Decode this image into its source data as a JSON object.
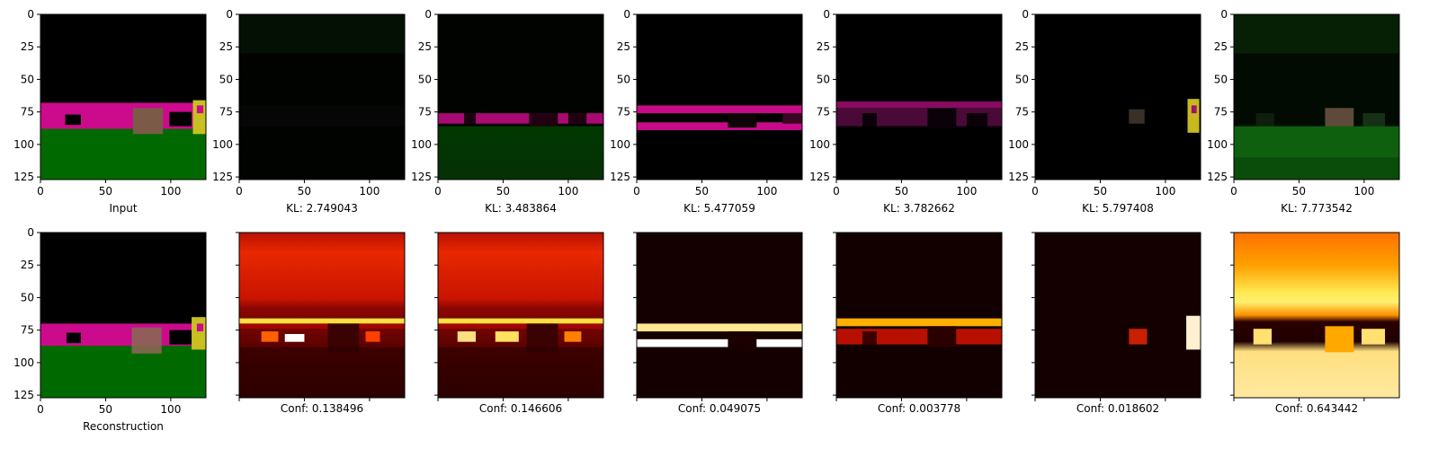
{
  "figure": {
    "top_panels": [
      {
        "id": "input",
        "caption": "Input",
        "kind": "image"
      },
      {
        "id": "slot1",
        "caption": "KL: 2.749043",
        "kind": "image"
      },
      {
        "id": "slot2",
        "caption": "KL: 3.483864",
        "kind": "image"
      },
      {
        "id": "slot3",
        "caption": "KL: 5.477059",
        "kind": "image"
      },
      {
        "id": "slot4",
        "caption": "KL: 3.782662",
        "kind": "image"
      },
      {
        "id": "slot5",
        "caption": "KL: 5.797408",
        "kind": "image"
      },
      {
        "id": "slot6",
        "caption": "KL: 7.773542",
        "kind": "image"
      }
    ],
    "bottom_panels": [
      {
        "id": "reconstruction",
        "caption": "Reconstruction",
        "kind": "image"
      },
      {
        "id": "conf1",
        "caption": "Conf: 0.138496",
        "kind": "heatmap"
      },
      {
        "id": "conf2",
        "caption": "Conf: 0.146606",
        "kind": "heatmap"
      },
      {
        "id": "conf3",
        "caption": "Conf: 0.049075",
        "kind": "heatmap"
      },
      {
        "id": "conf4",
        "caption": "Conf: 0.003778",
        "kind": "heatmap"
      },
      {
        "id": "conf5",
        "caption": "Conf: 0.018602",
        "kind": "heatmap"
      },
      {
        "id": "conf6",
        "caption": "Conf: 0.643442",
        "kind": "heatmap"
      }
    ],
    "colors": {
      "background_black": "#000000",
      "magenta": "#cc0a8c",
      "green": "#006a00",
      "box_brown": "#7b5a48",
      "key_yellow": "#c8c020",
      "heat_dark": "#1a0000",
      "heat_red": "#c81400",
      "heat_orange": "#ff8a00",
      "heat_yellow": "#ffe848",
      "heat_white": "#ffffff"
    }
  },
  "chart_data": {
    "type": "heatmap",
    "x": {
      "range": [
        0,
        127
      ],
      "ticks": [
        0,
        50,
        100
      ],
      "tick_labels": [
        "0",
        "50",
        "100"
      ]
    },
    "y": {
      "range": [
        127,
        0
      ],
      "ticks": [
        0,
        25,
        50,
        75,
        100,
        125
      ],
      "tick_labels": [
        "0",
        "25",
        "50",
        "75",
        "100",
        "125"
      ]
    },
    "kl_values": [
      2.749043,
      3.483864,
      5.477059,
      3.782662,
      5.797408,
      7.773542
    ],
    "conf_values": [
      0.138496,
      0.146606,
      0.049075,
      0.003778,
      0.018602,
      0.643442
    ]
  }
}
